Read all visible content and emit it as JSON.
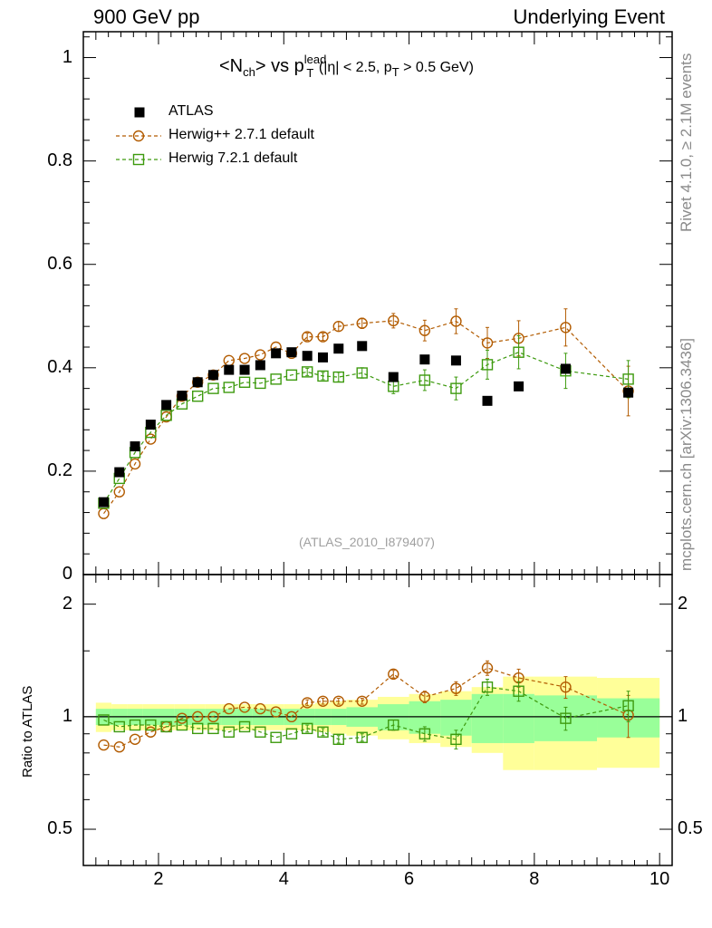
{
  "header": {
    "left": "900 GeV pp",
    "right": "Underlying Event",
    "side_top": "Rivet 4.1.0, ≥ 2.1M events",
    "side_bottom": "mcplots.cern.ch [arXiv:1306.3436]",
    "watermark": "(ATLAS_2010_I879407)"
  },
  "title": {
    "main": "<N",
    "sub_ch": "ch",
    "vs": "> vs p",
    "sup_lead": "lead",
    "sub_T": "T",
    "cut_part1": "(|η| < 2.5, p",
    "cut_sub_T": "T",
    "cut_part2": " > 0.5 GeV)"
  },
  "colors": {
    "atlas": "#000000",
    "herwigpp": "#b25b00",
    "herwig7": "#3d9a0e",
    "band_inner": "#99ff99",
    "band_outer": "#ffff99"
  },
  "legend": {
    "atlas": "ATLAS",
    "herwigpp": "Herwig++ 2.7.1 default",
    "herwig7": "Herwig 7.2.1 default"
  },
  "axis_labels": {
    "ratio_ylabel": "Ratio to ATLAS"
  },
  "chart_data": [
    {
      "type": "scatter",
      "panel": "main",
      "title": "<Nch> vs pT lead (|η| < 2.5, pT > 0.5 GeV)",
      "xlim": [
        0.8,
        10.2
      ],
      "ylim": [
        0,
        1.05
      ],
      "yticks": [
        0,
        0.2,
        0.4,
        0.6,
        0.8,
        1
      ],
      "ytick_labels": [
        "0",
        "0.2",
        "0.4",
        "0.6",
        "0.8",
        "1"
      ],
      "xticks": [
        2,
        4,
        6,
        8,
        10
      ],
      "xtick_labels": [
        "2",
        "4",
        "6",
        "8",
        "10"
      ],
      "x": [
        1.125,
        1.375,
        1.625,
        1.875,
        2.125,
        2.375,
        2.625,
        2.875,
        3.125,
        3.375,
        3.625,
        3.875,
        4.125,
        4.375,
        4.625,
        4.875,
        5.25,
        5.75,
        6.25,
        6.75,
        7.25,
        7.75,
        8.5,
        9.5
      ],
      "series": [
        {
          "name": "ATLAS",
          "values": [
            0.14,
            0.198,
            0.248,
            0.29,
            0.328,
            0.346,
            0.372,
            0.386,
            0.396,
            0.396,
            0.405,
            0.428,
            0.43,
            0.423,
            0.42,
            0.437,
            0.442,
            0.382,
            0.416,
            0.414,
            0.336,
            0.364,
            0.398,
            0.352
          ]
        },
        {
          "name": "Herwig++ 2.7.1 default",
          "values": [
            0.118,
            0.16,
            0.214,
            0.262,
            0.305,
            0.345,
            0.372,
            0.386,
            0.414,
            0.418,
            0.425,
            0.44,
            0.428,
            0.46,
            0.46,
            0.48,
            0.486,
            0.491,
            0.472,
            0.49,
            0.448,
            0.457,
            0.478,
            0.355
          ],
          "errors": [
            0.004,
            0.004,
            0.004,
            0.004,
            0.004,
            0.004,
            0.004,
            0.005,
            0.005,
            0.005,
            0.006,
            0.006,
            0.006,
            0.007,
            0.007,
            0.009,
            0.01,
            0.014,
            0.02,
            0.024,
            0.03,
            0.034,
            0.036,
            0.048
          ]
        },
        {
          "name": "Herwig 7.2.1 default",
          "values": [
            0.138,
            0.186,
            0.236,
            0.275,
            0.308,
            0.33,
            0.345,
            0.36,
            0.362,
            0.372,
            0.37,
            0.378,
            0.386,
            0.392,
            0.384,
            0.382,
            0.39,
            0.364,
            0.376,
            0.36,
            0.406,
            0.43,
            0.394,
            0.378
          ],
          "errors": [
            0.004,
            0.004,
            0.004,
            0.004,
            0.004,
            0.004,
            0.004,
            0.005,
            0.005,
            0.005,
            0.006,
            0.006,
            0.006,
            0.007,
            0.007,
            0.009,
            0.01,
            0.014,
            0.02,
            0.022,
            0.028,
            0.032,
            0.034,
            0.036
          ]
        }
      ]
    },
    {
      "type": "scatter",
      "panel": "ratio",
      "ylabel": "Ratio to ATLAS",
      "xlim": [
        0.8,
        10.2
      ],
      "ylim": [
        0.4,
        2.4
      ],
      "yscale": "log",
      "yticks": [
        0.5,
        1,
        2
      ],
      "ytick_labels": [
        "0.5",
        "1",
        "2"
      ],
      "x": [
        1.125,
        1.375,
        1.625,
        1.875,
        2.125,
        2.375,
        2.625,
        2.875,
        3.125,
        3.375,
        3.625,
        3.875,
        4.125,
        4.375,
        4.625,
        4.875,
        5.25,
        5.75,
        6.25,
        6.75,
        7.25,
        7.75,
        8.5,
        9.5
      ],
      "bin_edges": [
        1.0,
        1.25,
        1.5,
        1.75,
        2.0,
        2.25,
        2.5,
        2.75,
        3.0,
        3.25,
        3.5,
        3.75,
        4.0,
        4.25,
        4.5,
        4.75,
        5.0,
        5.5,
        6.0,
        6.5,
        7.0,
        7.5,
        8.0,
        9.0,
        10.0
      ],
      "band_inner_halfwidth": [
        0.05,
        0.05,
        0.05,
        0.05,
        0.05,
        0.05,
        0.05,
        0.05,
        0.05,
        0.05,
        0.05,
        0.05,
        0.05,
        0.05,
        0.05,
        0.05,
        0.06,
        0.08,
        0.1,
        0.11,
        0.15,
        0.15,
        0.14,
        0.12
      ],
      "band_outer_halfwidth": [
        0.09,
        0.08,
        0.08,
        0.08,
        0.08,
        0.08,
        0.08,
        0.08,
        0.08,
        0.08,
        0.08,
        0.08,
        0.08,
        0.08,
        0.09,
        0.1,
        0.11,
        0.13,
        0.15,
        0.17,
        0.2,
        0.28,
        0.28,
        0.27
      ],
      "series": [
        {
          "name": "Herwig++ 2.7.1 default",
          "values": [
            0.84,
            0.83,
            0.87,
            0.91,
            0.94,
            0.99,
            1.0,
            1.0,
            1.05,
            1.06,
            1.05,
            1.03,
            1.0,
            1.09,
            1.1,
            1.1,
            1.1,
            1.3,
            1.13,
            1.19,
            1.35,
            1.27,
            1.2,
            1.01
          ],
          "errors": [
            0.01,
            0.01,
            0.01,
            0.01,
            0.01,
            0.01,
            0.01,
            0.01,
            0.01,
            0.01,
            0.01,
            0.01,
            0.01,
            0.02,
            0.02,
            0.02,
            0.02,
            0.03,
            0.04,
            0.05,
            0.06,
            0.07,
            0.08,
            0.13
          ]
        },
        {
          "name": "Herwig 7.2.1 default",
          "values": [
            0.98,
            0.94,
            0.95,
            0.95,
            0.94,
            0.95,
            0.93,
            0.93,
            0.91,
            0.94,
            0.91,
            0.88,
            0.9,
            0.93,
            0.91,
            0.87,
            0.88,
            0.95,
            0.9,
            0.87,
            1.2,
            1.17,
            0.99,
            1.07
          ],
          "errors": [
            0.01,
            0.01,
            0.01,
            0.01,
            0.01,
            0.01,
            0.01,
            0.01,
            0.01,
            0.01,
            0.01,
            0.01,
            0.01,
            0.02,
            0.02,
            0.02,
            0.02,
            0.03,
            0.04,
            0.05,
            0.06,
            0.07,
            0.07,
            0.1
          ]
        }
      ]
    }
  ]
}
